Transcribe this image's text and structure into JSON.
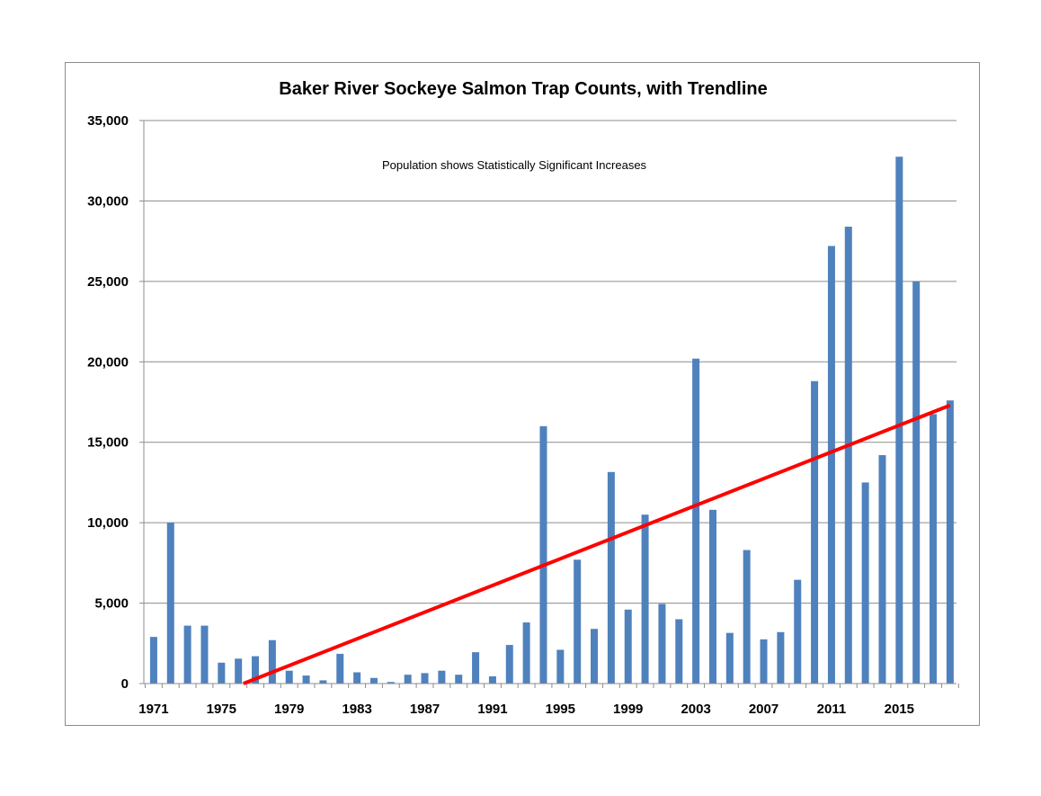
{
  "chart_data": {
    "type": "bar",
    "title": "Baker River Sockeye Salmon Trap Counts, with Trendline",
    "annotation": "Population shows Statistically Significant Increases",
    "xlabel": "",
    "ylabel": "",
    "ylim": [
      0,
      35000
    ],
    "y_ticks": [
      0,
      5000,
      10000,
      15000,
      20000,
      25000,
      30000,
      35000
    ],
    "y_tick_labels": [
      "0",
      "5,000",
      "10,000",
      "15,000",
      "20,000",
      "25,000",
      "30,000",
      "35,000"
    ],
    "x_tick_labels": [
      "1971",
      "1975",
      "1979",
      "1983",
      "1987",
      "1991",
      "1995",
      "1999",
      "2003",
      "2007",
      "2011",
      "2015"
    ],
    "grid": true,
    "bar_color": "#4f81bd",
    "trendline_color": "#ff0000",
    "categories": [
      1971,
      1972,
      1973,
      1974,
      1975,
      1976,
      1977,
      1978,
      1979,
      1980,
      1981,
      1982,
      1983,
      1984,
      1985,
      1986,
      1987,
      1988,
      1989,
      1990,
      1991,
      1992,
      1993,
      1994,
      1995,
      1996,
      1997,
      1998,
      1999,
      2000,
      2001,
      2002,
      2003,
      2004,
      2005,
      2006,
      2007,
      2008,
      2009,
      2010,
      2011,
      2012,
      2013,
      2014,
      2015,
      2016,
      2017,
      2018
    ],
    "values": [
      2900,
      10000,
      3600,
      3600,
      1300,
      1550,
      1700,
      2700,
      800,
      500,
      200,
      1850,
      700,
      350,
      100,
      550,
      650,
      800,
      550,
      1950,
      450,
      2400,
      3800,
      16000,
      2100,
      7700,
      3400,
      13150,
      4600,
      10500,
      4950,
      4000,
      20200,
      10800,
      3150,
      8300,
      2750,
      3200,
      6450,
      18800,
      27200,
      28400,
      12500,
      14200,
      32750,
      25000,
      16750,
      17600
    ],
    "trendline": {
      "x": [
        1976.3,
        2018
      ],
      "y": [
        0,
        17300
      ]
    }
  }
}
